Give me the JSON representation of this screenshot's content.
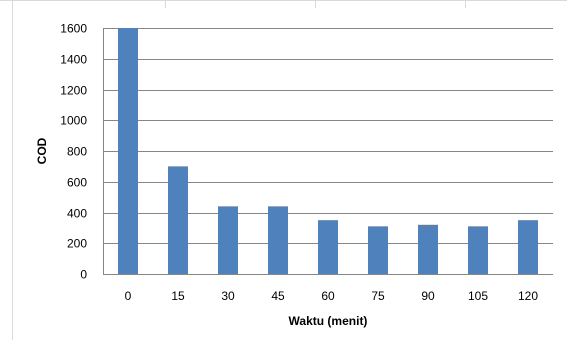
{
  "chart_data": {
    "type": "bar",
    "title": "",
    "xlabel": "Waktu (menit)",
    "ylabel": "COD",
    "categories": [
      "0",
      "15",
      "30",
      "45",
      "60",
      "75",
      "90",
      "105",
      "120"
    ],
    "values": [
      1600,
      700,
      440,
      440,
      350,
      310,
      320,
      310,
      350
    ],
    "ylim": [
      0,
      1600
    ],
    "yticks": [
      "0",
      "200",
      "400",
      "600",
      "800",
      "1000",
      "1200",
      "1400",
      "1600"
    ],
    "grid": true,
    "legend": "none",
    "bar_color": "#4f81bd",
    "grid_color": "#868686"
  }
}
